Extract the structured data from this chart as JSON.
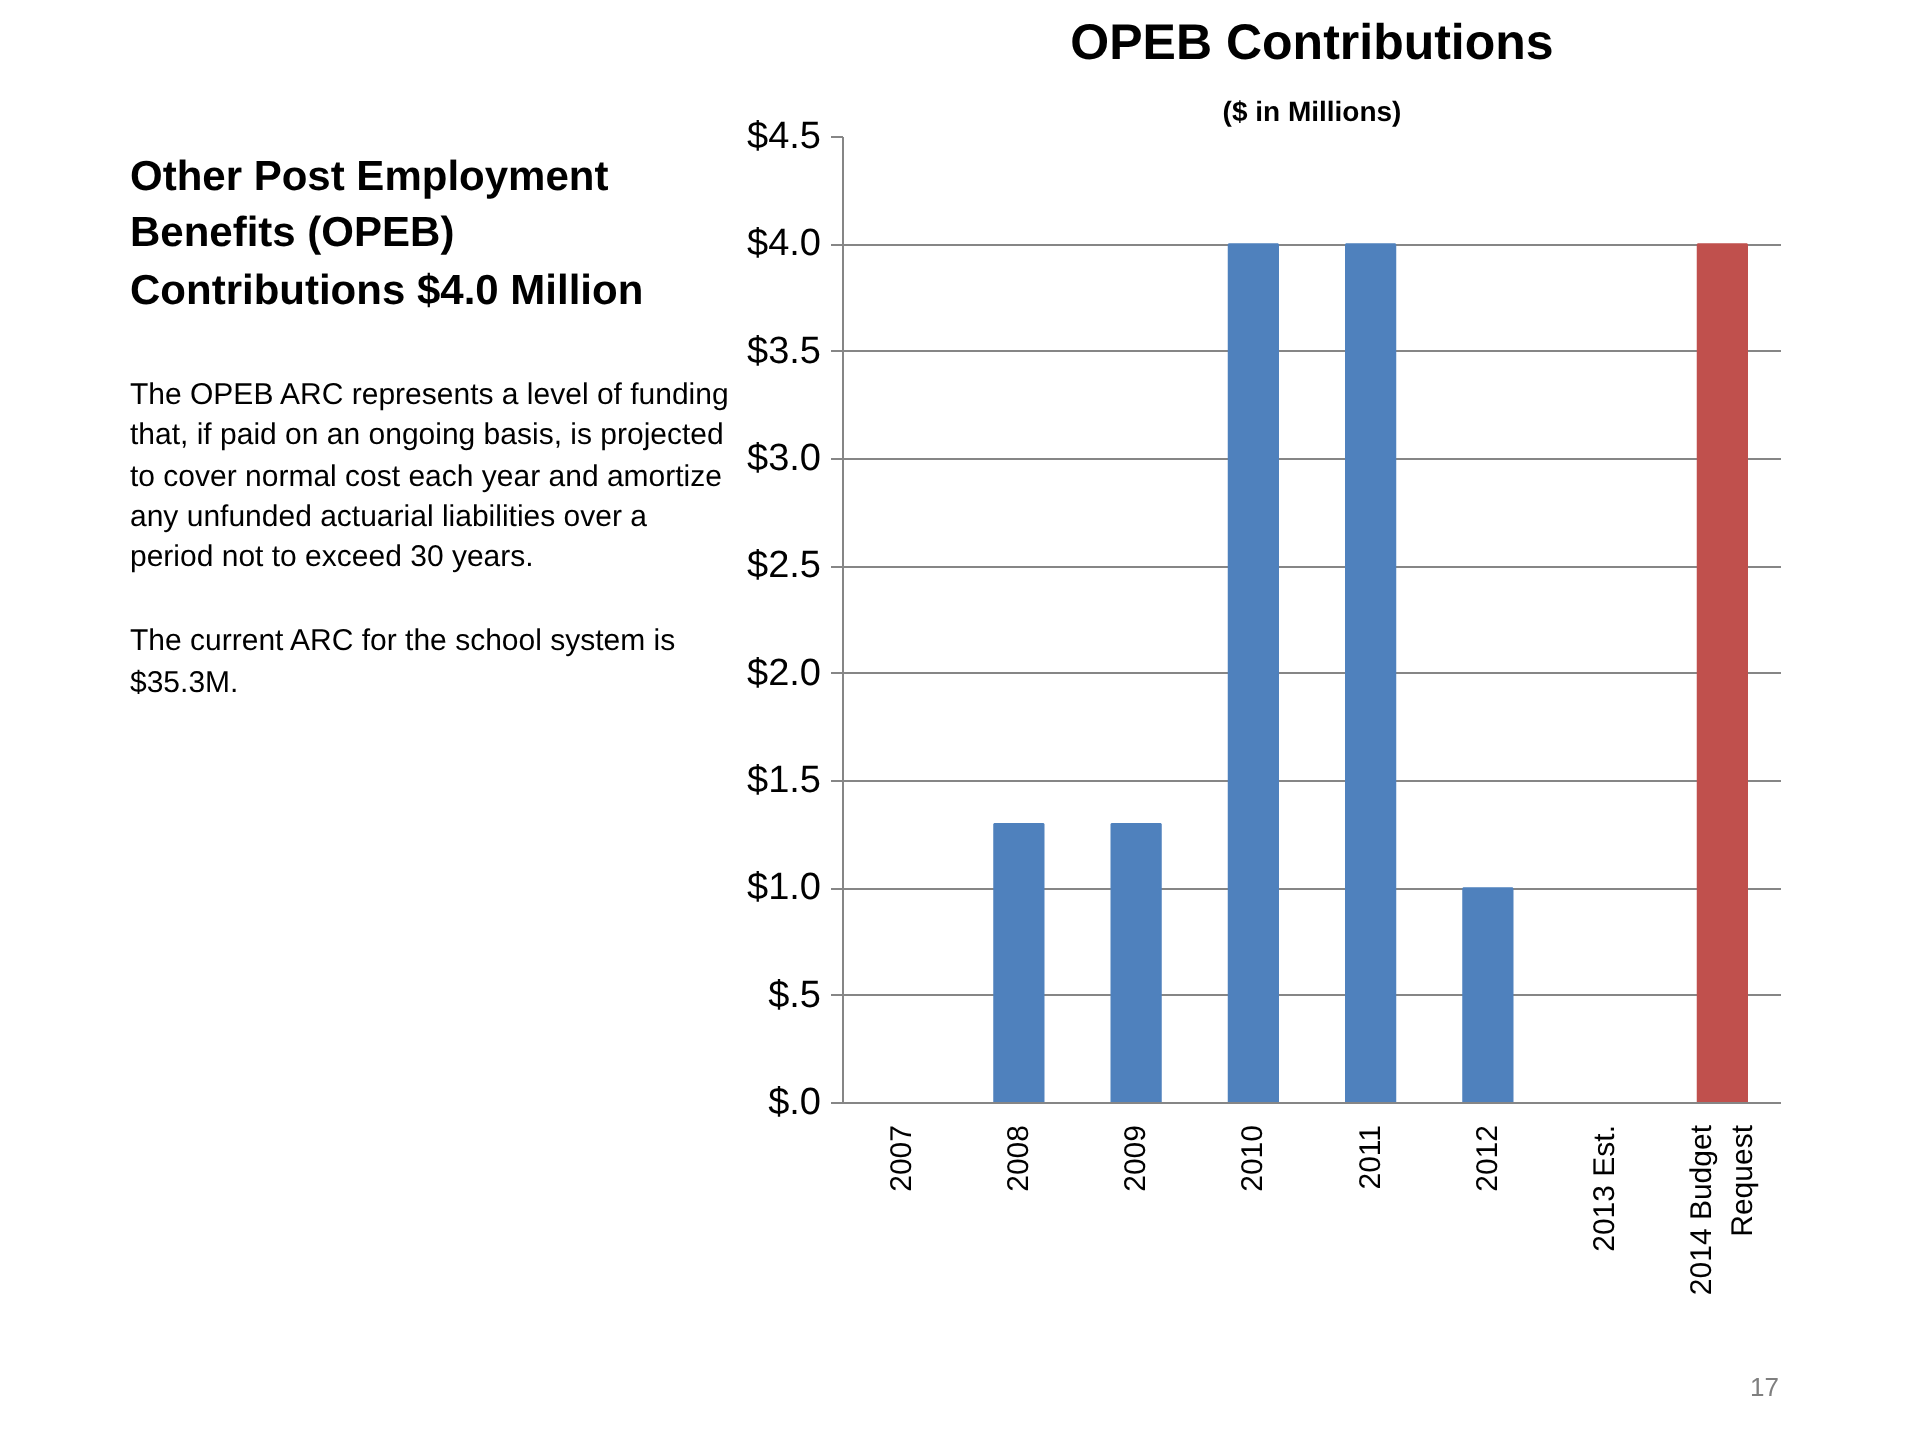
{
  "chart_data": {
    "type": "bar",
    "title": "OPEB Contributions",
    "subtitle": "($ in Millions)",
    "categories": [
      "2007",
      "2008",
      "2009",
      "2010",
      "2011",
      "2012",
      "2013 Est.",
      "2014 Budget Request"
    ],
    "values": [
      0,
      1.3,
      1.3,
      4.0,
      4.0,
      1.0,
      0,
      4.0
    ],
    "colors": [
      "#4f81bd",
      "#4f81bd",
      "#4f81bd",
      "#4f81bd",
      "#4f81bd",
      "#4f81bd",
      "#4f81bd",
      "#c0504d"
    ],
    "ylim": [
      0,
      4.5
    ],
    "yticks": [
      {
        "value": 0,
        "label": "$.0"
      },
      {
        "value": 0.5,
        "label": "$.5"
      },
      {
        "value": 1,
        "label": "$1.0"
      },
      {
        "value": 1.5,
        "label": "$1.5"
      },
      {
        "value": 2,
        "label": "$2.0"
      },
      {
        "value": 2.5,
        "label": "$2.5"
      },
      {
        "value": 3,
        "label": "$3.0"
      },
      {
        "value": 3.5,
        "label": "$3.5"
      },
      {
        "value": 4,
        "label": "$4.0"
      },
      {
        "value": 4.5,
        "label": "$4.5"
      }
    ],
    "grid": "y",
    "annotations": [
      "Other Post Employment Benefits (OPEB) Contributions $4.0 Million",
      "The OPEB ARC represents a level of funding that, if paid on an ongoing basis, is projected to cover normal cost each year and amortize any unfunded actuarial liabilities over a period not to exceed 30 years.",
      "The current ARC for the school system is $35.3M.",
      "17"
    ]
  }
}
